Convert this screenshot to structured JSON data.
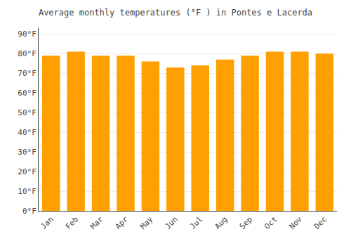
{
  "chart_data": {
    "type": "bar",
    "title": "Average monthly temperatures (°F ) in Pontes e Lacerda",
    "categories": [
      "Jan",
      "Feb",
      "Mar",
      "Apr",
      "May",
      "Jun",
      "Jul",
      "Aug",
      "Sep",
      "Oct",
      "Nov",
      "Dec"
    ],
    "values": [
      79,
      81,
      79,
      79,
      76,
      73,
      74,
      77,
      79,
      81,
      81,
      80
    ],
    "color": "#FFA000",
    "ylim": [
      0,
      93
    ],
    "yticks": [
      {
        "value": 0,
        "label": "0°F"
      },
      {
        "value": 10,
        "label": "10°F"
      },
      {
        "value": 20,
        "label": "20°F"
      },
      {
        "value": 30,
        "label": "30°F"
      },
      {
        "value": 40,
        "label": "40°F"
      },
      {
        "value": 50,
        "label": "50°F"
      },
      {
        "value": 60,
        "label": "60°F"
      },
      {
        "value": 70,
        "label": "70°F"
      },
      {
        "value": 80,
        "label": "80°F"
      },
      {
        "value": 90,
        "label": "90°F"
      }
    ],
    "grid": true
  }
}
